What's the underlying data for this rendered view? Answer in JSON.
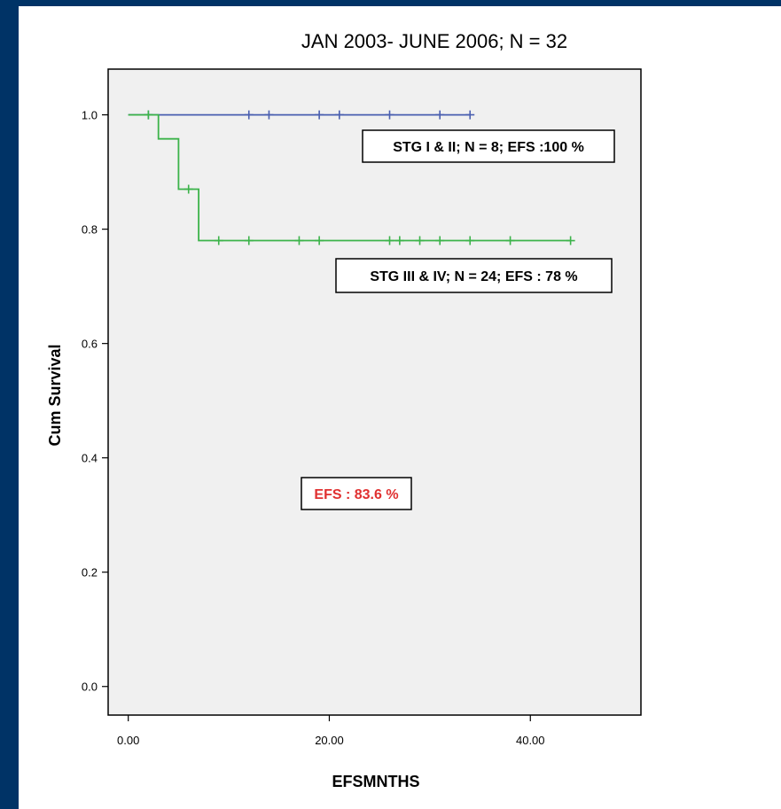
{
  "chart_data": {
    "type": "line",
    "title": "JAN 2003- JUNE 2006;  N = 32",
    "xlabel": "EFSMNTHS",
    "ylabel": "Cum Survival",
    "xlim": [
      -2,
      51
    ],
    "ylim": [
      -0.05,
      1.08
    ],
    "x_ticks": [
      0,
      20,
      40
    ],
    "x_tick_labels": [
      "0.00",
      "20.00",
      "40.00"
    ],
    "y_ticks": [
      0.0,
      0.2,
      0.4,
      0.6,
      0.8,
      1.0
    ],
    "y_tick_labels": [
      "0.0",
      "0.2",
      "0.4",
      "0.6",
      "0.8",
      "1.0"
    ],
    "grid": false,
    "background": "#f0f0f0",
    "series": [
      {
        "color": "#4a5fb0",
        "steps": [
          [
            0,
            1.0
          ],
          [
            34,
            1.0
          ]
        ],
        "censored": [
          [
            2,
            1.0
          ],
          [
            12,
            1.0
          ],
          [
            14,
            1.0
          ],
          [
            19,
            1.0
          ],
          [
            21,
            1.0
          ],
          [
            26,
            1.0
          ],
          [
            31,
            1.0
          ],
          [
            34,
            1.0
          ]
        ]
      },
      {
        "color": "#3cb34a",
        "steps": [
          [
            0,
            1.0
          ],
          [
            3,
            1.0
          ],
          [
            3,
            0.958
          ],
          [
            5,
            0.958
          ],
          [
            5,
            0.87
          ],
          [
            7,
            0.87
          ],
          [
            7,
            0.78
          ],
          [
            44,
            0.78
          ]
        ],
        "censored": [
          [
            2,
            1.0
          ],
          [
            6,
            0.87
          ],
          [
            9,
            0.78
          ],
          [
            12,
            0.78
          ],
          [
            17,
            0.78
          ],
          [
            19,
            0.78
          ],
          [
            26,
            0.78
          ],
          [
            27,
            0.78
          ],
          [
            29,
            0.78
          ],
          [
            31,
            0.78
          ],
          [
            34,
            0.78
          ],
          [
            38,
            0.78
          ],
          [
            44,
            0.78
          ]
        ]
      }
    ],
    "annotations": [
      {
        "text": "STG I & II;  N = 8;  EFS :100 %",
        "color": "#000000"
      },
      {
        "text": "STG III & IV;  N = 24;  EFS : 78 %",
        "color": "#000000"
      },
      {
        "text": "EFS : 83.6 %",
        "color": "#e03030"
      }
    ]
  }
}
